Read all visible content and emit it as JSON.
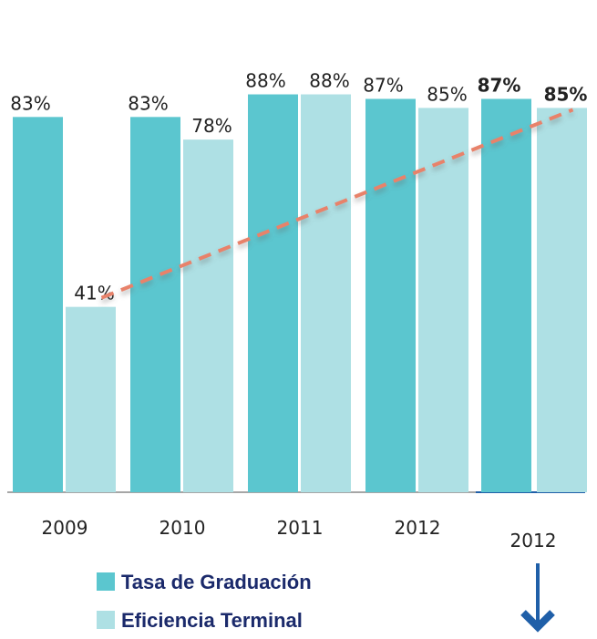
{
  "chart_data": {
    "type": "bar",
    "categories": [
      "2009",
      "2010",
      "2011",
      "2012",
      "2012"
    ],
    "series": [
      {
        "name": "Tasa de Graduación",
        "color": "#5bc6cf",
        "values": [
          83,
          83,
          88,
          87,
          87
        ],
        "value_labels": [
          "83%",
          "83%",
          "88%",
          "87%",
          "87%"
        ]
      },
      {
        "name": "Eficiencia Terminal",
        "color": "#aee0e4",
        "values": [
          41,
          78,
          88,
          85,
          85
        ],
        "value_labels": [
          "41%",
          "78%",
          "88%",
          "85%",
          "85%"
        ]
      }
    ],
    "ylim": [
      0,
      100
    ],
    "highlight": 4
  }
}
